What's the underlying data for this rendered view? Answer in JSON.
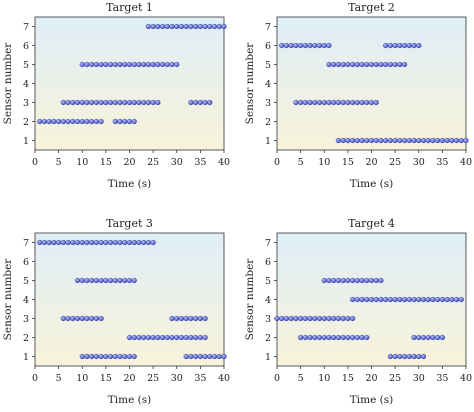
{
  "chart_data": [
    {
      "type": "scatter",
      "title": "Target 1",
      "xlabel": "Time (s)",
      "ylabel": "Sensor number",
      "xlim": [
        0,
        40
      ],
      "ylim": [
        0.5,
        7.5
      ],
      "xticks": [
        0,
        5,
        10,
        15,
        20,
        25,
        30,
        35,
        40
      ],
      "yticks": [
        1,
        2,
        3,
        4,
        5,
        6,
        7
      ],
      "x_step": 1,
      "segments": [
        {
          "sensor": 7,
          "x_start": 24,
          "x_end": 40
        },
        {
          "sensor": 5,
          "x_start": 10,
          "x_end": 30
        },
        {
          "sensor": 3,
          "x_start": 6,
          "x_end": 26
        },
        {
          "sensor": 3,
          "x_start": 33,
          "x_end": 37
        },
        {
          "sensor": 2,
          "x_start": 1,
          "x_end": 14
        },
        {
          "sensor": 2,
          "x_start": 17,
          "x_end": 21
        }
      ]
    },
    {
      "type": "scatter",
      "title": "Target 2",
      "xlabel": "Time (s)",
      "ylabel": "Sensor number",
      "xlim": [
        0,
        40
      ],
      "ylim": [
        0.5,
        7.5
      ],
      "xticks": [
        0,
        5,
        10,
        15,
        20,
        25,
        30,
        35,
        40
      ],
      "yticks": [
        1,
        2,
        3,
        4,
        5,
        6,
        7
      ],
      "x_step": 1,
      "segments": [
        {
          "sensor": 6,
          "x_start": 1,
          "x_end": 11
        },
        {
          "sensor": 6,
          "x_start": 23,
          "x_end": 30
        },
        {
          "sensor": 5,
          "x_start": 11,
          "x_end": 27
        },
        {
          "sensor": 3,
          "x_start": 4,
          "x_end": 21
        },
        {
          "sensor": 1,
          "x_start": 13,
          "x_end": 40
        }
      ]
    },
    {
      "type": "scatter",
      "title": "Target 3",
      "xlabel": "Time (s)",
      "ylabel": "Sensor number",
      "xlim": [
        0,
        40
      ],
      "ylim": [
        0.5,
        7.5
      ],
      "xticks": [
        0,
        5,
        10,
        15,
        20,
        25,
        30,
        35,
        40
      ],
      "yticks": [
        1,
        2,
        3,
        4,
        5,
        6,
        7
      ],
      "x_step": 1,
      "segments": [
        {
          "sensor": 7,
          "x_start": 1,
          "x_end": 25
        },
        {
          "sensor": 5,
          "x_start": 9,
          "x_end": 21
        },
        {
          "sensor": 3,
          "x_start": 6,
          "x_end": 14
        },
        {
          "sensor": 3,
          "x_start": 29,
          "x_end": 36
        },
        {
          "sensor": 2,
          "x_start": 20,
          "x_end": 36
        },
        {
          "sensor": 1,
          "x_start": 10,
          "x_end": 21
        },
        {
          "sensor": 1,
          "x_start": 32,
          "x_end": 40
        }
      ]
    },
    {
      "type": "scatter",
      "title": "Target 4",
      "xlabel": "Time (s)",
      "ylabel": "Sensor number",
      "xlim": [
        0,
        40
      ],
      "ylim": [
        0.5,
        7.5
      ],
      "xticks": [
        0,
        5,
        10,
        15,
        20,
        25,
        30,
        35,
        40
      ],
      "yticks": [
        1,
        2,
        3,
        4,
        5,
        6,
        7
      ],
      "x_step": 1,
      "segments": [
        {
          "sensor": 5,
          "x_start": 10,
          "x_end": 22
        },
        {
          "sensor": 4,
          "x_start": 16,
          "x_end": 39
        },
        {
          "sensor": 3,
          "x_start": 0,
          "x_end": 16
        },
        {
          "sensor": 2,
          "x_start": 5,
          "x_end": 19
        },
        {
          "sensor": 2,
          "x_start": 29,
          "x_end": 35
        },
        {
          "sensor": 1,
          "x_start": 24,
          "x_end": 31
        }
      ]
    }
  ],
  "colors": {
    "marker_fill": "#4a58c8",
    "marker_stroke": "#2a3290",
    "background_top": "#dfeef7",
    "background_bottom": "#f8f3da",
    "axis": "#333333"
  }
}
